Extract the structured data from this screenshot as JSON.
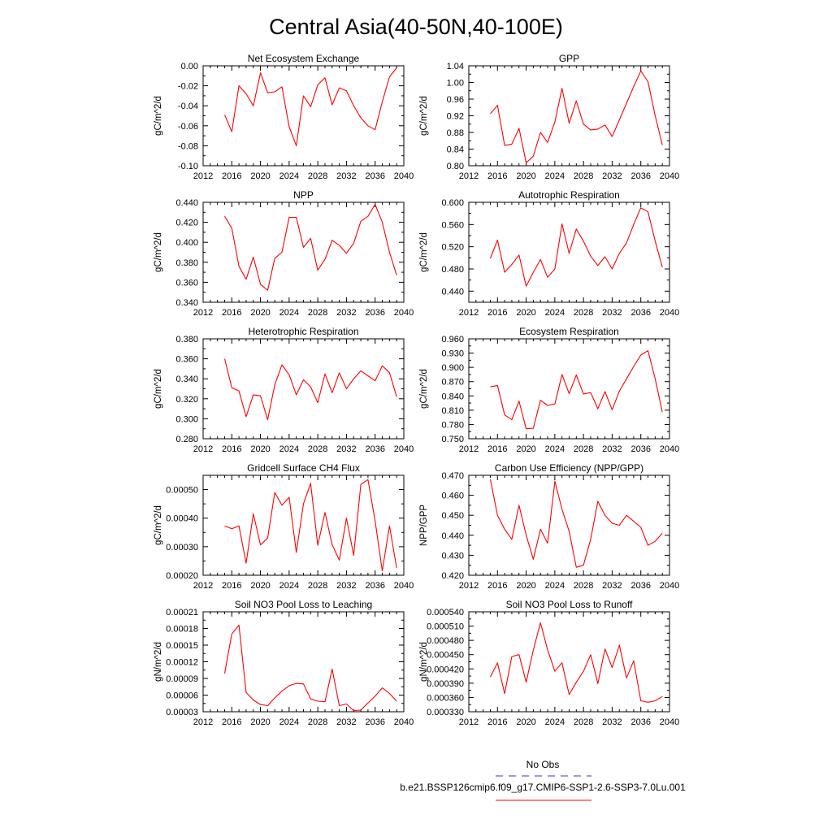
{
  "figure_title": "Central Asia(40-50N,40-100E)",
  "colors": {
    "model_line": "#ff0000",
    "obs_line": "#3333cc",
    "axis": "#000000"
  },
  "legend": {
    "obs_label": "No Obs",
    "model_label": "b.e21.BSSP126cmip6.f09_g17.CMIP6-SSP1-2.6-SSP3-7.0Lu.001"
  },
  "chart_data": [
    {
      "type": "line",
      "title": "Net Ecosystem Exchange",
      "ylabel": "gC/m^2/d",
      "xlim": [
        2012,
        2040
      ],
      "xticks": [
        "2012",
        "2016",
        "2020",
        "2024",
        "2028",
        "2032",
        "2036",
        "2040"
      ],
      "ylim": [
        -0.1,
        0.0
      ],
      "yticks": [
        "-0.10",
        "-0.08",
        "-0.06",
        "-0.04",
        "-0.02",
        "0.00"
      ],
      "x": [
        2015,
        2016,
        2017,
        2018,
        2019,
        2020,
        2021,
        2022,
        2023,
        2024,
        2025,
        2026,
        2027,
        2028,
        2029,
        2030,
        2031,
        2032,
        2033,
        2034,
        2035,
        2036,
        2037,
        2038,
        2039
      ],
      "values": [
        -0.049,
        -0.066,
        -0.02,
        -0.028,
        -0.04,
        -0.007,
        -0.027,
        -0.026,
        -0.021,
        -0.061,
        -0.08,
        -0.03,
        -0.041,
        -0.019,
        -0.012,
        -0.039,
        -0.022,
        -0.025,
        -0.04,
        -0.052,
        -0.06,
        -0.064,
        -0.036,
        -0.011,
        -0.002
      ]
    },
    {
      "type": "line",
      "title": "GPP",
      "ylabel": "gC/m^2/d",
      "xlim": [
        2012,
        2040
      ],
      "xticks": [
        "2012",
        "2016",
        "2020",
        "2024",
        "2028",
        "2032",
        "2036",
        "2040"
      ],
      "ylim": [
        0.8,
        1.04
      ],
      "yticks": [
        "0.80",
        "0.84",
        "0.88",
        "0.92",
        "0.96",
        "1.00",
        "1.04"
      ],
      "x": [
        2015,
        2016,
        2017,
        2018,
        2019,
        2020,
        2021,
        2022,
        2023,
        2024,
        2025,
        2026,
        2027,
        2028,
        2029,
        2030,
        2031,
        2032,
        2033,
        2034,
        2035,
        2036,
        2037,
        2038,
        2039
      ],
      "values": [
        0.925,
        0.945,
        0.849,
        0.852,
        0.89,
        0.807,
        0.823,
        0.88,
        0.856,
        0.905,
        0.986,
        0.902,
        0.956,
        0.9,
        0.886,
        0.888,
        0.898,
        0.87,
        0.91,
        0.95,
        0.99,
        1.028,
        1.002,
        0.92,
        0.85
      ]
    },
    {
      "type": "line",
      "title": "NPP",
      "ylabel": "gC/m^2/d",
      "xlim": [
        2012,
        2040
      ],
      "xticks": [
        "2012",
        "2016",
        "2020",
        "2024",
        "2028",
        "2032",
        "2036",
        "2040"
      ],
      "ylim": [
        0.34,
        0.44
      ],
      "yticks": [
        "0.340",
        "0.360",
        "0.380",
        "0.400",
        "0.420",
        "0.440"
      ],
      "x": [
        2015,
        2016,
        2017,
        2018,
        2019,
        2020,
        2021,
        2022,
        2023,
        2024,
        2025,
        2026,
        2027,
        2028,
        2029,
        2030,
        2031,
        2032,
        2033,
        2034,
        2035,
        2036,
        2037,
        2038,
        2039
      ],
      "values": [
        0.426,
        0.414,
        0.376,
        0.363,
        0.385,
        0.358,
        0.352,
        0.384,
        0.39,
        0.425,
        0.425,
        0.395,
        0.404,
        0.372,
        0.383,
        0.402,
        0.397,
        0.389,
        0.399,
        0.421,
        0.426,
        0.438,
        0.42,
        0.39,
        0.367
      ]
    },
    {
      "type": "line",
      "title": "Autotrophic Respiration",
      "ylabel": "gC/m^2/d",
      "xlim": [
        2012,
        2040
      ],
      "xticks": [
        "2012",
        "2016",
        "2020",
        "2024",
        "2028",
        "2032",
        "2036",
        "2040"
      ],
      "ylim": [
        0.42,
        0.6
      ],
      "yticks": [
        "0.440",
        "0.480",
        "0.520",
        "0.560",
        "0.600"
      ],
      "x": [
        2015,
        2016,
        2017,
        2018,
        2019,
        2020,
        2021,
        2022,
        2023,
        2024,
        2025,
        2026,
        2027,
        2028,
        2029,
        2030,
        2031,
        2032,
        2033,
        2034,
        2035,
        2036,
        2037,
        2038,
        2039
      ],
      "values": [
        0.499,
        0.532,
        0.474,
        0.488,
        0.505,
        0.449,
        0.474,
        0.497,
        0.465,
        0.48,
        0.561,
        0.508,
        0.552,
        0.53,
        0.503,
        0.486,
        0.502,
        0.48,
        0.508,
        0.527,
        0.56,
        0.59,
        0.583,
        0.53,
        0.483
      ]
    },
    {
      "type": "line",
      "title": "Heterotrophic Respiration",
      "ylabel": "gC/m^2/d",
      "xlim": [
        2012,
        2040
      ],
      "xticks": [
        "2012",
        "2016",
        "2020",
        "2024",
        "2028",
        "2032",
        "2036",
        "2040"
      ],
      "ylim": [
        0.28,
        0.38
      ],
      "yticks": [
        "0.280",
        "0.300",
        "0.320",
        "0.340",
        "0.360",
        "0.380"
      ],
      "x": [
        2015,
        2016,
        2017,
        2018,
        2019,
        2020,
        2021,
        2022,
        2023,
        2024,
        2025,
        2026,
        2027,
        2028,
        2029,
        2030,
        2031,
        2032,
        2033,
        2034,
        2035,
        2036,
        2037,
        2038,
        2039
      ],
      "values": [
        0.36,
        0.331,
        0.328,
        0.302,
        0.324,
        0.323,
        0.299,
        0.334,
        0.354,
        0.344,
        0.324,
        0.339,
        0.332,
        0.316,
        0.345,
        0.326,
        0.346,
        0.33,
        0.34,
        0.348,
        0.343,
        0.338,
        0.353,
        0.346,
        0.322
      ]
    },
    {
      "type": "line",
      "title": "Ecosystem Respiration",
      "ylabel": "gC/m^2/d",
      "xlim": [
        2012,
        2040
      ],
      "xticks": [
        "2012",
        "2016",
        "2020",
        "2024",
        "2028",
        "2032",
        "2036",
        "2040"
      ],
      "ylim": [
        0.75,
        0.96
      ],
      "yticks": [
        "0.750",
        "0.780",
        "0.810",
        "0.840",
        "0.870",
        "0.900",
        "0.930",
        "0.960"
      ],
      "x": [
        2015,
        2016,
        2017,
        2018,
        2019,
        2020,
        2021,
        2022,
        2023,
        2024,
        2025,
        2026,
        2027,
        2028,
        2029,
        2030,
        2031,
        2032,
        2033,
        2034,
        2035,
        2036,
        2037,
        2038,
        2039
      ],
      "values": [
        0.859,
        0.862,
        0.8,
        0.79,
        0.829,
        0.771,
        0.772,
        0.831,
        0.82,
        0.823,
        0.885,
        0.845,
        0.884,
        0.844,
        0.847,
        0.813,
        0.849,
        0.811,
        0.85,
        0.876,
        0.902,
        0.926,
        0.935,
        0.876,
        0.806
      ]
    },
    {
      "type": "line",
      "title": "Gridcell Surface CH4 Flux",
      "ylabel": "gC/m^2/d",
      "xlim": [
        2012,
        2040
      ],
      "xticks": [
        "2012",
        "2016",
        "2020",
        "2024",
        "2028",
        "2032",
        "2036",
        "2040"
      ],
      "ylim": [
        0.0002,
        0.00055
      ],
      "yticks": [
        "0.00020",
        "0.00030",
        "0.00040",
        "0.00050"
      ],
      "x": [
        2015,
        2016,
        2017,
        2018,
        2019,
        2020,
        2021,
        2022,
        2023,
        2024,
        2025,
        2026,
        2027,
        2028,
        2029,
        2030,
        2031,
        2032,
        2033,
        2034,
        2035,
        2036,
        2037,
        2038,
        2039
      ],
      "values": [
        0.000373,
        0.000363,
        0.000373,
        0.000242,
        0.000415,
        0.000306,
        0.00033,
        0.00049,
        0.000445,
        0.000473,
        0.00028,
        0.00045,
        0.000522,
        0.000305,
        0.00042,
        0.000307,
        0.000253,
        0.0004,
        0.00027,
        0.000518,
        0.000535,
        0.00039,
        0.000215,
        0.000373,
        0.000225
      ]
    },
    {
      "type": "line",
      "title": "Carbon Use Efficiency (NPP/GPP)",
      "ylabel": "NPP/GPP",
      "xlim": [
        2012,
        2040
      ],
      "xticks": [
        "2012",
        "2016",
        "2020",
        "2024",
        "2028",
        "2032",
        "2036",
        "2040"
      ],
      "ylim": [
        0.42,
        0.47
      ],
      "yticks": [
        "0.420",
        "0.430",
        "0.440",
        "0.450",
        "0.460",
        "0.470"
      ],
      "x": [
        2015,
        2016,
        2017,
        2018,
        2019,
        2020,
        2021,
        2022,
        2023,
        2024,
        2025,
        2026,
        2027,
        2028,
        2029,
        2030,
        2031,
        2032,
        2033,
        2034,
        2035,
        2036,
        2037,
        2038,
        2039
      ],
      "values": [
        0.468,
        0.45,
        0.443,
        0.438,
        0.455,
        0.44,
        0.428,
        0.443,
        0.436,
        0.467,
        0.453,
        0.442,
        0.424,
        0.425,
        0.438,
        0.457,
        0.45,
        0.446,
        0.445,
        0.45,
        0.447,
        0.444,
        0.435,
        0.437,
        0.441
      ]
    },
    {
      "type": "line",
      "title": "Soil NO3 Pool Loss to Leaching",
      "ylabel": "gN/m^2/d",
      "xlim": [
        2012,
        2040
      ],
      "xticks": [
        "2012",
        "2016",
        "2020",
        "2024",
        "2028",
        "2032",
        "2036",
        "2040"
      ],
      "ylim": [
        3e-05,
        0.00021
      ],
      "yticks": [
        "0.00003",
        "0.00006",
        "0.00009",
        "0.00012",
        "0.00015",
        "0.00018",
        "0.00021"
      ],
      "x": [
        2015,
        2016,
        2017,
        2018,
        2019,
        2020,
        2021,
        2022,
        2023,
        2024,
        2025,
        2026,
        2027,
        2028,
        2029,
        2030,
        2031,
        2032,
        2033,
        2034,
        2035,
        2036,
        2037,
        2038,
        2039
      ],
      "values": [
        9.9e-05,
        0.00017,
        0.000186,
        6.5e-05,
        5.1e-05,
        4.3e-05,
        4.1e-05,
        5.5e-05,
        6.7e-05,
        7.7e-05,
        8.1e-05,
        8e-05,
        5.3e-05,
        4.9e-05,
        4.8e-05,
        0.000107,
        4.1e-05,
        4.4e-05,
        3.2e-05,
        3.3e-05,
        4.6e-05,
        5.8e-05,
        7.3e-05,
        6.3e-05,
        4.9e-05
      ]
    },
    {
      "type": "line",
      "title": "Soil NO3 Pool Loss to Runoff",
      "ylabel": "gN/m^2/d",
      "xlim": [
        2012,
        2040
      ],
      "xticks": [
        "2012",
        "2016",
        "2020",
        "2024",
        "2028",
        "2032",
        "2036",
        "2040"
      ],
      "ylim": [
        0.00033,
        0.00054
      ],
      "yticks": [
        "0.000330",
        "0.000360",
        "0.000390",
        "0.000420",
        "0.000450",
        "0.000480",
        "0.000510",
        "0.000540"
      ],
      "x": [
        2015,
        2016,
        2017,
        2018,
        2019,
        2020,
        2021,
        2022,
        2023,
        2024,
        2025,
        2026,
        2027,
        2028,
        2029,
        2030,
        2031,
        2032,
        2033,
        2034,
        2035,
        2036,
        2037,
        2038,
        2039
      ],
      "values": [
        0.000403,
        0.000433,
        0.000368,
        0.000446,
        0.00045,
        0.000392,
        0.00046,
        0.000517,
        0.00046,
        0.000415,
        0.000433,
        0.000366,
        0.000392,
        0.000415,
        0.00045,
        0.000389,
        0.000462,
        0.000423,
        0.00047,
        0.000401,
        0.000437,
        0.000353,
        0.00035,
        0.000353,
        0.000362
      ]
    }
  ]
}
